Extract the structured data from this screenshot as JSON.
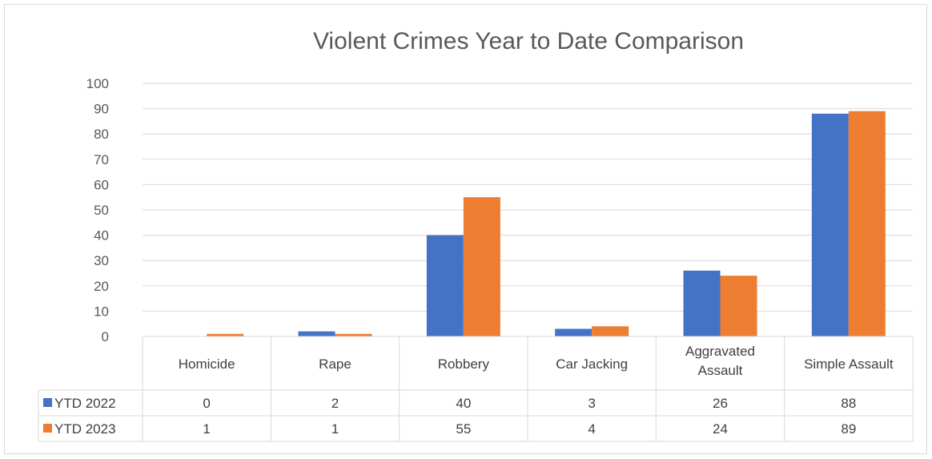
{
  "chart_data": {
    "type": "bar",
    "title": "Violent Crimes Year to Date Comparison",
    "categories": [
      "Homicide",
      "Rape",
      "Robbery",
      "Car Jacking",
      "Aggravated Assault",
      "Simple Assault"
    ],
    "series": [
      {
        "name": "YTD 2022",
        "color": "#4472c4",
        "values": [
          0,
          2,
          40,
          3,
          26,
          88
        ]
      },
      {
        "name": "YTD 2023",
        "color": "#ed7d31",
        "values": [
          1,
          1,
          55,
          4,
          24,
          89
        ]
      }
    ],
    "ylim": [
      0,
      100
    ],
    "yticks": [
      "0",
      "10",
      "20",
      "30",
      "40",
      "50",
      "60",
      "70",
      "80",
      "90",
      "100"
    ],
    "grid": true,
    "legend": "data-table",
    "xlabel": "",
    "ylabel": ""
  }
}
